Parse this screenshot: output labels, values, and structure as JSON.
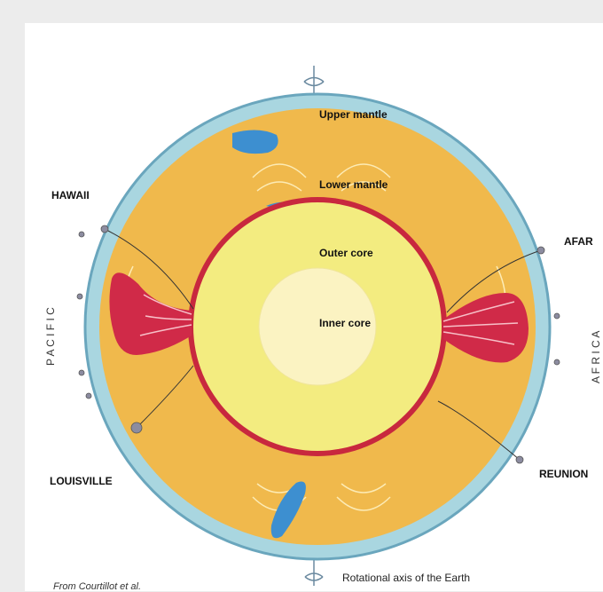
{
  "labels": {
    "upper_mantle": "Upper mantle",
    "lower_mantle": "Lower mantle",
    "outer_core": "Outer core",
    "inner_core": "Inner core"
  },
  "hotspots": {
    "hawaii": "HAWAII",
    "afar": "AFAR",
    "louisville": "LOUISVILLE",
    "reunion": "REUNION"
  },
  "regions": {
    "pacific": "P A C I F I C",
    "africa": "A F R I C A"
  },
  "caption": "Rotational axis of the Earth",
  "credit": "From Courtillot et al.",
  "colors": {
    "crust": "#a9d6e0",
    "crust_stroke": "#6aa6bd",
    "mantle": "#f0b94c",
    "core_boundary": "#c8283e",
    "outer_core": "#f3ec80",
    "inner_core": "#fbf3c2",
    "plume": "#d02a48",
    "slab": "#3d8fd0",
    "background": "#ececec",
    "panel": "#ffffff"
  }
}
